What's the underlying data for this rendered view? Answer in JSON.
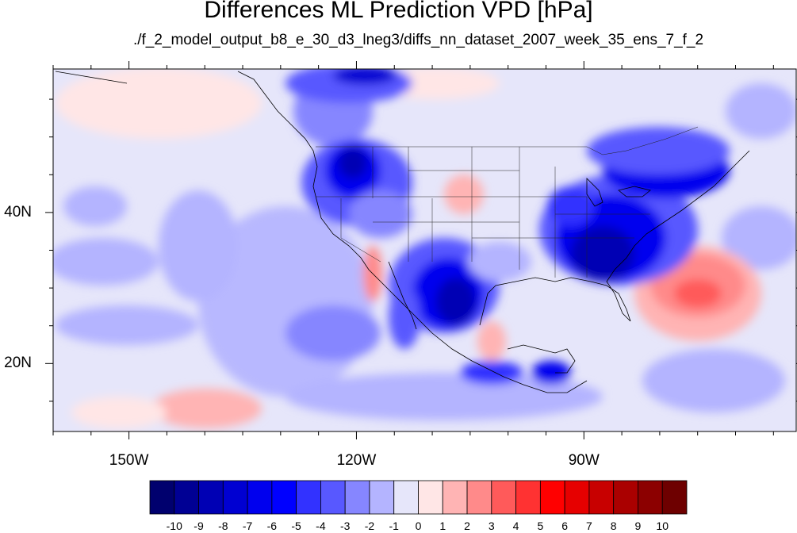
{
  "title": "Differences ML Prediction VPD [hPa]",
  "subtitle": "./f_2_model_output_b8_e_30_d3_lneg3/diffs_nn_dataset_2007_week_35_ens_7_f_2",
  "map": {
    "projection": "cylindrical-equidistant",
    "lon_range": [
      -160,
      -62
    ],
    "lat_range": [
      11,
      59
    ],
    "lon_ticks": [
      {
        "value": -150,
        "label": "150W"
      },
      {
        "value": -120,
        "label": "120W"
      },
      {
        "value": -90,
        "label": "90W"
      }
    ],
    "lat_ticks": [
      {
        "value": 40,
        "label": "40N"
      },
      {
        "value": 20,
        "label": "20N"
      }
    ],
    "overlays": [
      "coastlines",
      "us-state-boundaries",
      "country-boundaries"
    ]
  },
  "colorbar": {
    "labels": [
      "-10",
      "-9",
      "-8",
      "-7",
      "-6",
      "-5",
      "-4",
      "-3",
      "-2",
      "-1",
      "0",
      "1",
      "2",
      "3",
      "4",
      "5",
      "6",
      "7",
      "8",
      "9",
      "10"
    ],
    "colors": [
      "#00006e",
      "#000094",
      "#0000b4",
      "#0000d2",
      "#0000ee",
      "#0000ff",
      "#3232ff",
      "#5858ff",
      "#8686ff",
      "#b4b4ff",
      "#e6e6fa",
      "#ffe6e6",
      "#ffb4b4",
      "#ff8a8a",
      "#ff5a5a",
      "#ff3232",
      "#ff0000",
      "#e60000",
      "#c80000",
      "#aa0000",
      "#8c0000",
      "#6e0000"
    ]
  }
}
